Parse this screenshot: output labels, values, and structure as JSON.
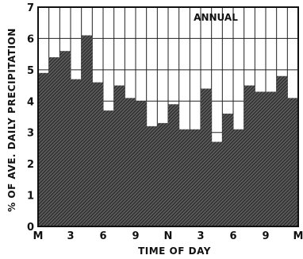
{
  "chart_data": {
    "type": "bar",
    "title": "",
    "xlabel": "TIME OF DAY",
    "ylabel": "% OF AVE. DAILY PRECIPITATION",
    "annotation": "ANNUAL",
    "ylim": [
      0,
      7
    ],
    "yticks": [
      "0",
      "1",
      "2",
      "3",
      "4",
      "5",
      "6",
      "7"
    ],
    "xticks": [
      "M",
      "3",
      "6",
      "9",
      "N",
      "3",
      "6",
      "9",
      "M"
    ],
    "hours": [
      0,
      1,
      2,
      3,
      4,
      5,
      6,
      7,
      8,
      9,
      10,
      11,
      12,
      13,
      14,
      15,
      16,
      17,
      18,
      19,
      20,
      21,
      22,
      23
    ],
    "values": [
      4.9,
      5.4,
      5.6,
      4.7,
      6.1,
      4.6,
      3.7,
      4.5,
      4.1,
      4.0,
      3.2,
      3.3,
      3.9,
      3.1,
      3.1,
      4.4,
      2.7,
      3.6,
      3.1,
      4.5,
      4.3,
      4.3,
      4.8,
      4.1
    ],
    "grid": true,
    "hatch_color": "#2a2a2a"
  }
}
